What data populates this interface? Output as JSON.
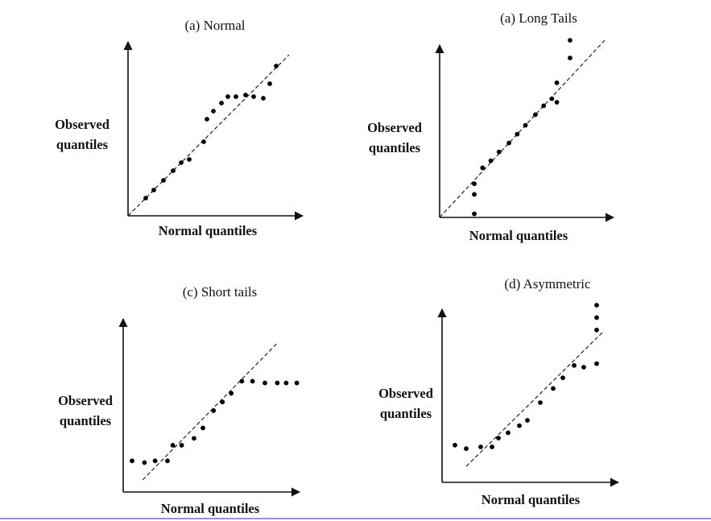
{
  "colors": {
    "bottom_rule": "#9a8ef0",
    "ink": "#000000"
  },
  "chart_data": [
    {
      "type": "scatter",
      "title": "(a) Normal",
      "xlabel": "Normal quantiles",
      "ylabel": [
        "Observed",
        "quantiles"
      ],
      "reference_line": {
        "x": [
          0,
          1
        ],
        "y": [
          0,
          1
        ]
      },
      "x": [
        0.11,
        0.16,
        0.22,
        0.28,
        0.33,
        0.38,
        0.47,
        0.49,
        0.53,
        0.58,
        0.62,
        0.67,
        0.73,
        0.78,
        0.84,
        0.88,
        0.92
      ],
      "y": [
        0.11,
        0.16,
        0.22,
        0.28,
        0.33,
        0.35,
        0.46,
        0.6,
        0.65,
        0.7,
        0.74,
        0.74,
        0.75,
        0.74,
        0.73,
        0.82,
        0.93
      ]
    },
    {
      "type": "scatter",
      "title": "(a) Long Tails",
      "xlabel": "Normal quantiles",
      "ylabel": [
        "Observed",
        "quantiles"
      ],
      "reference_line": {
        "x": [
          0,
          1
        ],
        "y": [
          0,
          1
        ]
      },
      "x": [
        0.21,
        0.21,
        0.21,
        0.26,
        0.31,
        0.36,
        0.42,
        0.47,
        0.52,
        0.58,
        0.63,
        0.68,
        0.71,
        0.71,
        0.79,
        0.79
      ],
      "y": [
        0.02,
        0.13,
        0.19,
        0.28,
        0.32,
        0.37,
        0.42,
        0.47,
        0.52,
        0.58,
        0.63,
        0.67,
        0.65,
        0.76,
        0.9,
        1.0
      ]
    },
    {
      "type": "scatter",
      "title": "(c) Short tails",
      "xlabel": "Normal quantiles",
      "ylabel": [
        "Observed",
        "quantiles"
      ],
      "reference_line": {
        "x": [
          0.11,
          0.87
        ],
        "y": [
          0.07,
          0.86
        ]
      },
      "x": [
        0.05,
        0.12,
        0.18,
        0.25,
        0.28,
        0.33,
        0.4,
        0.45,
        0.51,
        0.56,
        0.61,
        0.67,
        0.73,
        0.8,
        0.87,
        0.92,
        0.98
      ],
      "y": [
        0.18,
        0.17,
        0.18,
        0.18,
        0.27,
        0.27,
        0.31,
        0.37,
        0.47,
        0.52,
        0.57,
        0.64,
        0.64,
        0.63,
        0.63,
        0.63,
        0.63
      ]
    },
    {
      "type": "scatter",
      "title": "(d) Asymmetric",
      "xlabel": "Normal quantiles",
      "ylabel": [
        "Observed",
        "quantiles"
      ],
      "reference_line": {
        "x": [
          0.15,
          1.0
        ],
        "y": [
          0.09,
          0.85
        ]
      },
      "x": [
        0.08,
        0.15,
        0.24,
        0.31,
        0.35,
        0.41,
        0.48,
        0.53,
        0.61,
        0.69,
        0.75,
        0.82,
        0.88,
        0.96,
        0.96,
        0.96,
        0.96
      ],
      "y": [
        0.21,
        0.19,
        0.2,
        0.2,
        0.25,
        0.28,
        0.32,
        0.35,
        0.45,
        0.53,
        0.59,
        0.66,
        0.65,
        0.67,
        0.86,
        0.93,
        1.0
      ]
    }
  ]
}
